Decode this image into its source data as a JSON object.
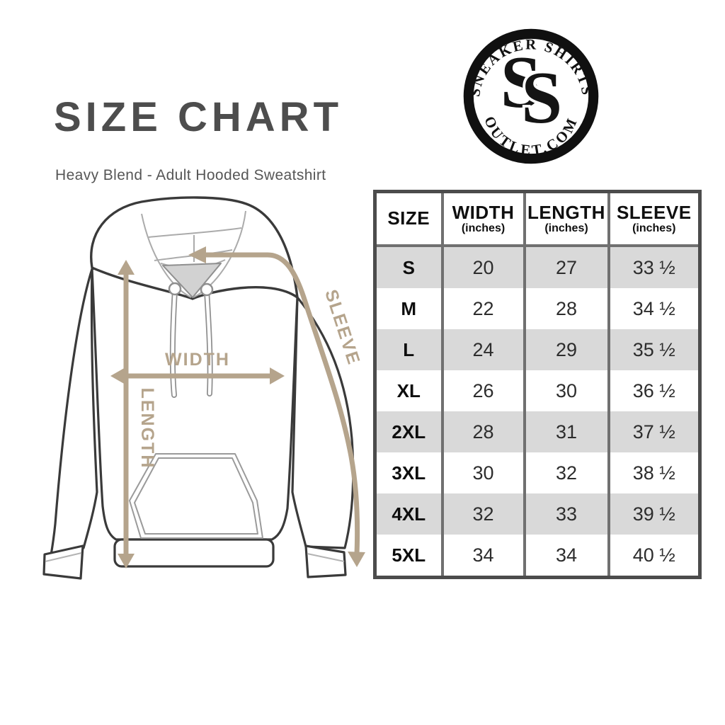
{
  "header": {
    "title": "SIZE CHART",
    "subtitle": "Heavy Blend - Adult Hooded Sweatshirt",
    "title_color": "#4d4d4d"
  },
  "logo": {
    "arc_top": "SNEAKER SHIRTS",
    "arc_bottom": "OUTLET.COM",
    "monogram": [
      "S",
      "S"
    ]
  },
  "diagram": {
    "width_label": "WIDTH",
    "length_label": "LENGTH",
    "sleeve_label": "SLEEVE",
    "arrow_color": "#b5a48c"
  },
  "table": {
    "columns": [
      {
        "label": "SIZE",
        "sub": ""
      },
      {
        "label": "WIDTH",
        "sub": "(inches)"
      },
      {
        "label": "LENGTH",
        "sub": "(inches)"
      },
      {
        "label": "SLEEVE",
        "sub": "(inches)"
      }
    ],
    "rows": [
      {
        "size": "S",
        "width": "20",
        "length": "27",
        "sleeve": "33 ½"
      },
      {
        "size": "M",
        "width": "22",
        "length": "28",
        "sleeve": "34 ½"
      },
      {
        "size": "L",
        "width": "24",
        "length": "29",
        "sleeve": "35 ½"
      },
      {
        "size": "XL",
        "width": "26",
        "length": "30",
        "sleeve": "36 ½"
      },
      {
        "size": "2XL",
        "width": "28",
        "length": "31",
        "sleeve": "37 ½"
      },
      {
        "size": "3XL",
        "width": "30",
        "length": "32",
        "sleeve": "38 ½"
      },
      {
        "size": "4XL",
        "width": "32",
        "length": "33",
        "sleeve": "39 ½"
      },
      {
        "size": "5XL",
        "width": "34",
        "length": "34",
        "sleeve": "40 ½"
      }
    ],
    "colors": {
      "alt_row_bg": "#d9d9d9",
      "grid": "#707070",
      "outer_border": "#4c4c4c"
    }
  },
  "chart_data": {
    "type": "table",
    "title": "SIZE CHART",
    "subtitle": "Heavy Blend - Adult Hooded Sweatshirt",
    "columns": [
      "SIZE",
      "WIDTH (inches)",
      "LENGTH (inches)",
      "SLEEVE (inches)"
    ],
    "rows": [
      [
        "S",
        "20",
        "27",
        "33 ½"
      ],
      [
        "M",
        "22",
        "28",
        "34 ½"
      ],
      [
        "L",
        "24",
        "29",
        "35 ½"
      ],
      [
        "XL",
        "26",
        "30",
        "36 ½"
      ],
      [
        "2XL",
        "28",
        "31",
        "37 ½"
      ],
      [
        "3XL",
        "30",
        "32",
        "38 ½"
      ],
      [
        "4XL",
        "32",
        "33",
        "39 ½"
      ],
      [
        "5XL",
        "34",
        "34",
        "40 ½"
      ]
    ],
    "units": "inches",
    "measured_dimensions": [
      "WIDTH",
      "LENGTH",
      "SLEEVE"
    ]
  }
}
